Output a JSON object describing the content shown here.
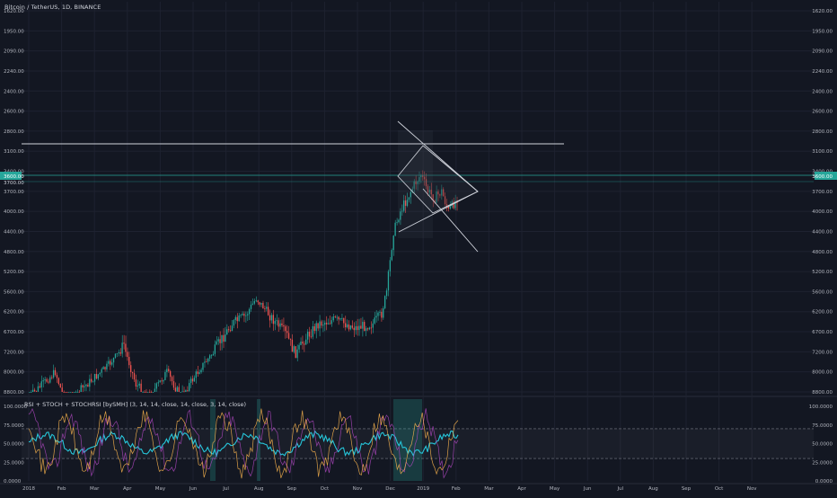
{
  "chart_data": [
    {
      "type": "candlestick",
      "title": "Bitcoin / TetherUS, 1D, BINANCE",
      "price_scale": "inverted",
      "ylim": [
        8800,
        1620
      ],
      "y_ticks": [
        "1620.00",
        "1950.00",
        "2090.00",
        "2240.00",
        "2400.00",
        "2600.00",
        "2800.00",
        "3100.00",
        "3400.00",
        "3700.00",
        "4000.00",
        "4400.00",
        "4800.00",
        "5200.00",
        "5600.00",
        "6200.00",
        "6700.00",
        "7200.00",
        "8000.00",
        "8800.00"
      ],
      "x_ticks": [
        "2018",
        "Feb",
        "Mar",
        "Apr",
        "May",
        "Jun",
        "Jul",
        "Aug",
        "Sep",
        "Oct",
        "Nov",
        "Dec",
        "2019",
        "Feb",
        "Mar",
        "Apr",
        "May",
        "Jun",
        "Jul",
        "Aug",
        "Sep",
        "Oct",
        "Nov"
      ],
      "current_price_label": "3600.00",
      "horizontal_line_label": "3700.00",
      "colors": {
        "up": "#26a69a",
        "down": "#ef5350",
        "background": "#131722",
        "grid": "#1e2230",
        "lines": "#d1d4dc",
        "price_line": "#26a69a",
        "label_bg": "#26a69a"
      },
      "annotations": [
        "horizontal line",
        "triangle pattern",
        "fan lines"
      ]
    },
    {
      "type": "line",
      "title": "RSI + STOCH + STOCHRSI [bySMH] (3, 14, 14, close, 14, close, 3, 14, close)",
      "ylim": [
        0,
        100
      ],
      "y_ticks": [
        "100.0000",
        "75.0000",
        "50.0000",
        "25.0000",
        "0.0000"
      ],
      "left_y_ticks": [
        "100.0000",
        "75.0000",
        "50.0000",
        "25.0000",
        "0.0000"
      ],
      "levels": [
        70,
        30
      ],
      "series": [
        {
          "color": "#26c6da"
        },
        {
          "color": "#ab47bc"
        },
        {
          "color": "#ffb74d"
        }
      ]
    }
  ]
}
